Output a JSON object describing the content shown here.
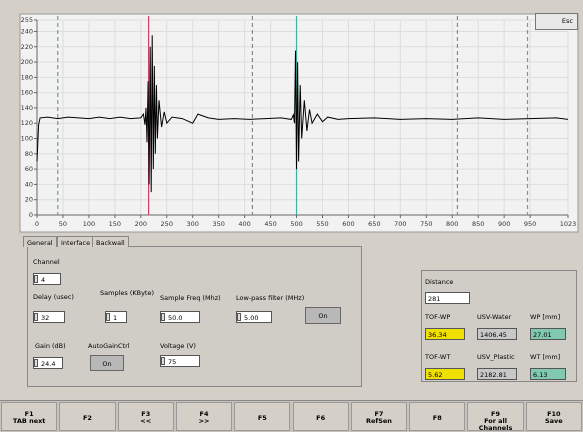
{
  "chart_data": {
    "type": "line",
    "xlim": [
      0,
      1023
    ],
    "ylim": [
      0,
      255
    ],
    "xticks": [
      0,
      50,
      100,
      150,
      200,
      250,
      300,
      350,
      400,
      450,
      500,
      550,
      600,
      650,
      700,
      750,
      800,
      850,
      900,
      950,
      1023
    ],
    "yticks": [
      0,
      20,
      40,
      60,
      80,
      100,
      120,
      140,
      160,
      180,
      200,
      220,
      240,
      255
    ],
    "grid": true,
    "x": [
      0,
      3,
      6,
      20,
      40,
      60,
      80,
      100,
      120,
      140,
      160,
      180,
      200,
      205,
      208,
      210,
      212,
      214,
      216,
      218,
      220,
      222,
      224,
      226,
      228,
      230,
      232,
      235,
      240,
      245,
      250,
      260,
      280,
      300,
      310,
      330,
      350,
      380,
      410,
      440,
      470,
      490,
      494,
      496,
      498,
      500,
      502,
      504,
      507,
      510,
      515,
      520,
      525,
      530,
      540,
      550,
      560,
      580,
      600,
      650,
      700,
      750,
      800,
      850,
      900,
      950,
      1000,
      1023
    ],
    "series": [
      {
        "color": "#000000",
        "values": [
          70,
          118,
          127,
          128,
          126,
          128,
          127,
          126,
          128,
          126,
          128,
          126,
          127,
          132,
          118,
          140,
          95,
          175,
          40,
          220,
          30,
          235,
          60,
          195,
          80,
          170,
          100,
          150,
          115,
          135,
          120,
          128,
          126,
          120,
          132,
          127,
          125,
          126,
          125,
          126,
          127,
          125,
          131,
          120,
          215,
          60,
          200,
          70,
          170,
          100,
          150,
          110,
          138,
          120,
          132,
          122,
          128,
          125,
          126,
          127,
          125,
          126,
          125,
          127,
          125,
          126,
          127,
          125
        ]
      }
    ],
    "markers": [
      {
        "x": 40,
        "color": "#66aa66",
        "style": "dashed"
      },
      {
        "x": 215,
        "color": "#d04060",
        "style": "solid"
      },
      {
        "x": 415,
        "color": "#888888",
        "style": "dashed"
      },
      {
        "x": 500,
        "color": "#40b0a0",
        "style": "solid"
      },
      {
        "x": 810,
        "color": "#888888",
        "style": "dashed"
      },
      {
        "x": 945,
        "color": "#66aa66",
        "style": "dashed"
      }
    ]
  },
  "esc": "Esc",
  "tabs": [
    "General",
    "Interface",
    "Backwall"
  ],
  "settings": {
    "channel": {
      "label": "Channel",
      "value": "4"
    },
    "delay": {
      "label": "Delay (usec)",
      "value": "32"
    },
    "samples": {
      "label": "Samples (KByte)",
      "value": "1"
    },
    "freq": {
      "label": "Sample Freq (Mhz)",
      "value": "50.0"
    },
    "lowpass": {
      "label": "Low-pass filter (MHz)",
      "value": "5.00",
      "button": "On"
    },
    "gain": {
      "label": "Gain (dB)",
      "value": "24.4"
    },
    "agc": {
      "label": "AutoGainCtrl",
      "button": "On"
    },
    "voltage": {
      "label": "Voltage (V)",
      "value": "75"
    }
  },
  "results": {
    "distance": {
      "label": "Distance",
      "value": "281"
    },
    "tof_wp": {
      "label": "TOF-WP",
      "value": "36.34"
    },
    "usv_water": {
      "label": "USV-Water",
      "value": "1406.45"
    },
    "wp": {
      "label": "WP [mm]",
      "value": "27.01"
    },
    "tof_wt": {
      "label": "TOF-WT",
      "value": "5.62"
    },
    "usv_plastic": {
      "label": "USV_Plastic",
      "value": "2182.81"
    },
    "wt": {
      "label": "WT [mm]",
      "value": "6.13"
    }
  },
  "fkeys": [
    {
      "key": "F1",
      "label": "TAB next"
    },
    {
      "key": "F2"
    },
    {
      "key": "F3",
      "label": "<<"
    },
    {
      "key": "F4",
      "label": ">>"
    },
    {
      "key": "F5"
    },
    {
      "key": "F6"
    },
    {
      "key": "F7",
      "label": "RefSen"
    },
    {
      "key": "F8"
    },
    {
      "key": "F9",
      "label": "For all Channels"
    },
    {
      "key": "F10",
      "label": "Save"
    }
  ]
}
